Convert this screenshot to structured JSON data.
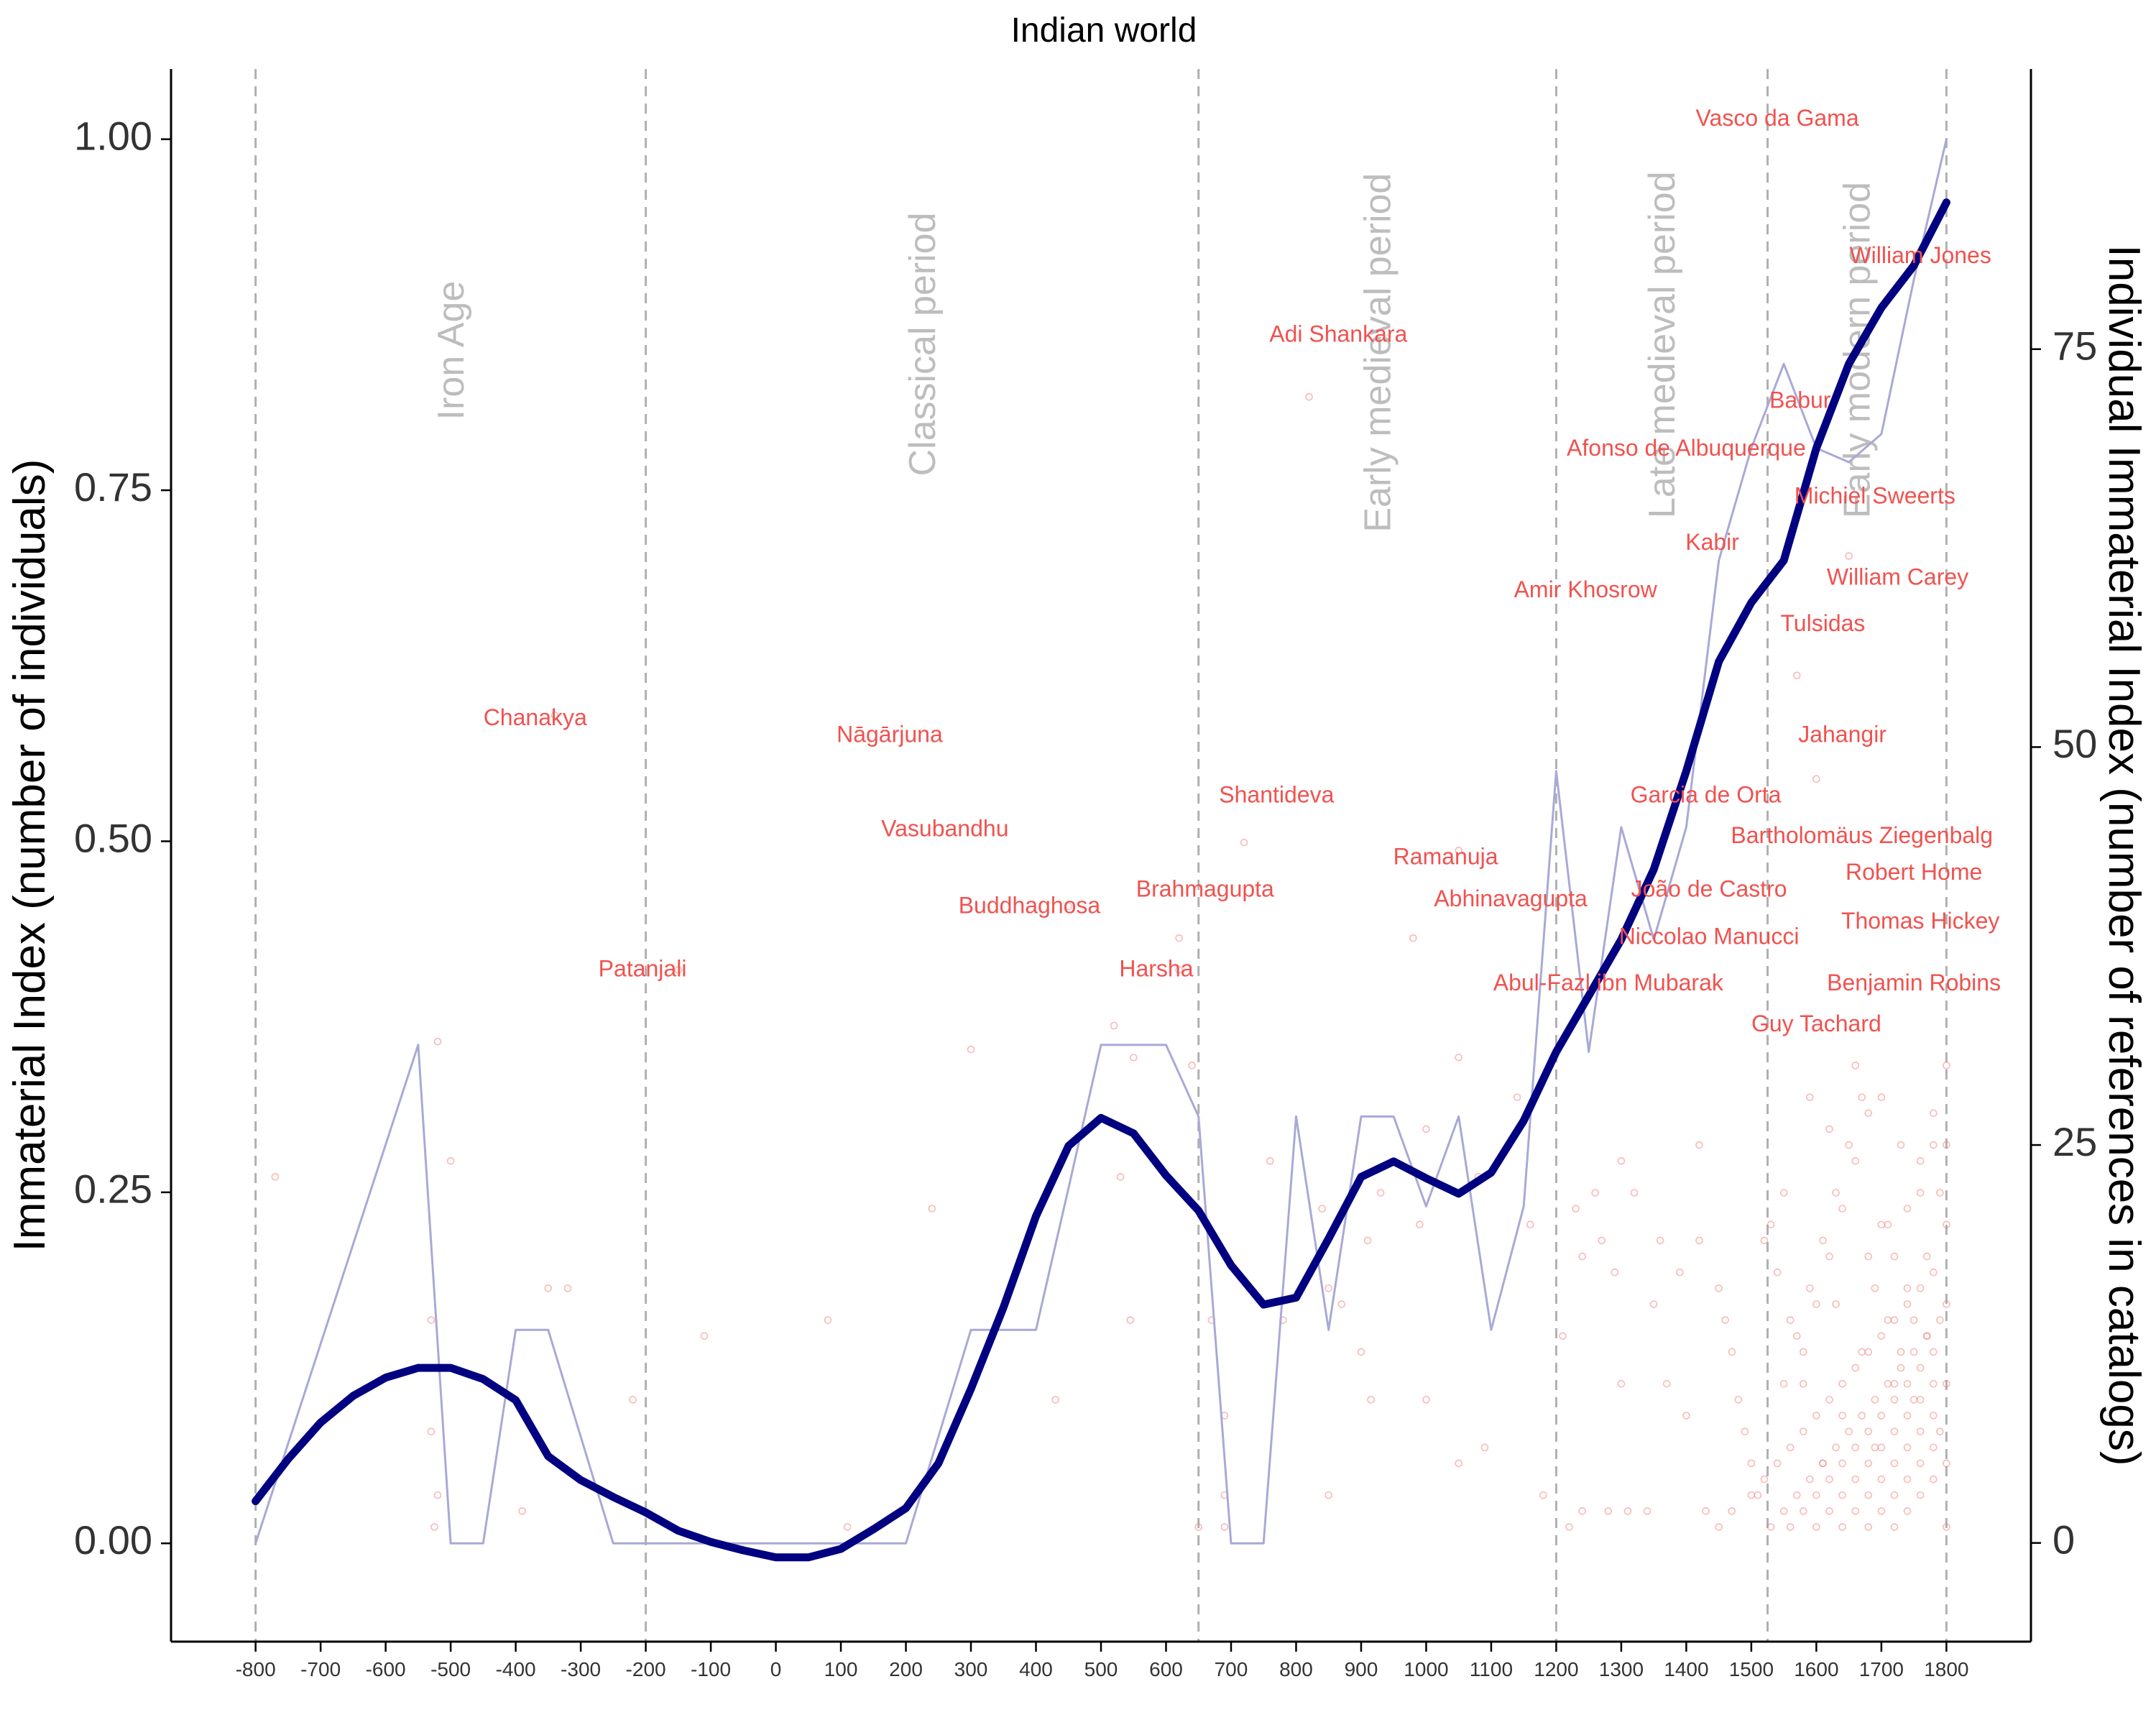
{
  "chart_data": {
    "type": "line",
    "title": "Indian world",
    "ylabel": "Immaterial Index (number of individuals)",
    "ylabel_right": "Individual Immaterial Index (number of references in catalogs)",
    "xlim": [
      -930,
      1930
    ],
    "ylim": [
      -0.07,
      1.05
    ],
    "ylim_right": [
      -6.2,
      92.6
    ],
    "grid": false,
    "x_ticks": [
      -800,
      -700,
      -600,
      -500,
      -400,
      -300,
      -200,
      -100,
      0,
      100,
      200,
      300,
      400,
      500,
      600,
      700,
      800,
      900,
      1000,
      1100,
      1200,
      1300,
      1400,
      1500,
      1600,
      1700,
      1800
    ],
    "y_ticks": [
      {
        "value": 0,
        "label": "0.00"
      },
      {
        "value": 0.25,
        "label": "0.25"
      },
      {
        "value": 0.5,
        "label": "0.50"
      },
      {
        "value": 0.75,
        "label": "0.75"
      },
      {
        "value": 1.0,
        "label": "1.00"
      }
    ],
    "y_ticks_right": [
      0,
      25,
      50,
      75
    ],
    "period_boundaries": [
      -800,
      -200,
      650,
      1200,
      1525,
      1800
    ],
    "periods": [
      {
        "label": "Iron Age",
        "x": -500,
        "y": 0.8
      },
      {
        "label": "Classical period",
        "x": 225,
        "y": 0.76
      },
      {
        "label": "Early medieval period",
        "x": 925,
        "y": 0.72
      },
      {
        "label": "Late medieval period",
        "x": 1362,
        "y": 0.73
      },
      {
        "label": "Early modern period",
        "x": 1662,
        "y": 0.73
      }
    ],
    "series": [
      {
        "color": "#a9a9d6",
        "x": [
          -800,
          -550,
          -500,
          -450,
          -400,
          -350,
          -250,
          -200,
          -100,
          0,
          100,
          200,
          250,
          300,
          350,
          400,
          450,
          500,
          550,
          600,
          650,
          700,
          750,
          800,
          850,
          900,
          950,
          1000,
          1050,
          1100,
          1150,
          1200,
          1250,
          1300,
          1350,
          1400,
          1450,
          1500,
          1550,
          1600,
          1650,
          1700,
          1750,
          1800
        ],
        "y": [
          0.0,
          0.355,
          0.0,
          0.0,
          0.152,
          0.152,
          0.0,
          0.0,
          0.0,
          0.0,
          0.0,
          0.0,
          0.076,
          0.152,
          0.152,
          0.152,
          0.253,
          0.355,
          0.355,
          0.355,
          0.304,
          0.0,
          0.0,
          0.304,
          0.152,
          0.304,
          0.304,
          0.24,
          0.304,
          0.152,
          0.24,
          0.55,
          0.35,
          0.51,
          0.43,
          0.51,
          0.7,
          0.78,
          0.84,
          0.78,
          0.77,
          0.79,
          0.9,
          1.0
        ]
      },
      {
        "color": "#000080",
        "x": [
          -800,
          -750,
          -700,
          -650,
          -600,
          -550,
          -500,
          -450,
          -400,
          -350,
          -300,
          -250,
          -200,
          -150,
          -100,
          -50,
          0,
          50,
          100,
          150,
          200,
          250,
          300,
          350,
          400,
          450,
          500,
          550,
          600,
          650,
          700,
          750,
          800,
          850,
          900,
          950,
          1000,
          1050,
          1100,
          1150,
          1200,
          1250,
          1300,
          1350,
          1400,
          1450,
          1500,
          1550,
          1600,
          1650,
          1700,
          1750,
          1800
        ],
        "y": [
          0.03,
          0.06,
          0.086,
          0.105,
          0.118,
          0.125,
          0.125,
          0.117,
          0.102,
          0.062,
          0.045,
          0.033,
          0.022,
          0.009,
          0.001,
          -0.005,
          -0.01,
          -0.01,
          -0.004,
          0.01,
          0.025,
          0.057,
          0.11,
          0.168,
          0.233,
          0.283,
          0.303,
          0.292,
          0.262,
          0.237,
          0.198,
          0.17,
          0.175,
          0.217,
          0.261,
          0.272,
          0.26,
          0.249,
          0.264,
          0.301,
          0.35,
          0.39,
          0.43,
          0.48,
          0.55,
          0.628,
          0.67,
          0.7,
          0.78,
          0.84,
          0.88,
          0.91,
          0.955
        ]
      }
    ],
    "annotations": [
      {
        "label": "Vasco da Gama",
        "x": 1540,
        "y": 1.014
      },
      {
        "label": "William Jones",
        "x": 1760,
        "y": 0.916
      },
      {
        "label": "Adi Shankara",
        "x": 865,
        "y": 0.86
      },
      {
        "label": "Babur",
        "x": 1575,
        "y": 0.813
      },
      {
        "label": "Afonso de Albuquerque",
        "x": 1400,
        "y": 0.779
      },
      {
        "label": "Michiel Sweerts",
        "x": 1690,
        "y": 0.745
      },
      {
        "label": "Kabir",
        "x": 1440,
        "y": 0.712
      },
      {
        "label": "William Carey",
        "x": 1725,
        "y": 0.687
      },
      {
        "label": "Amir Khosrow",
        "x": 1245,
        "y": 0.678
      },
      {
        "label": "Tulsidas",
        "x": 1610,
        "y": 0.654
      },
      {
        "label": "Chanakya",
        "x": -370,
        "y": 0.587
      },
      {
        "label": "Nāgārjuna",
        "x": 175,
        "y": 0.575
      },
      {
        "label": "Jahangir",
        "x": 1640,
        "y": 0.575
      },
      {
        "label": "Shantideva",
        "x": 770,
        "y": 0.532
      },
      {
        "label": "Garcia de Orta",
        "x": 1430,
        "y": 0.532
      },
      {
        "label": "Vasubandhu",
        "x": 260,
        "y": 0.508
      },
      {
        "label": "Bartholomäus Ziegenbalg",
        "x": 1670,
        "y": 0.503
      },
      {
        "label": "Ramanuja",
        "x": 1030,
        "y": 0.488
      },
      {
        "label": "Robert Home",
        "x": 1750,
        "y": 0.477
      },
      {
        "label": "Brahmagupta",
        "x": 660,
        "y": 0.465
      },
      {
        "label": "João de Castro",
        "x": 1435,
        "y": 0.465
      },
      {
        "label": "Buddhaghosa",
        "x": 390,
        "y": 0.453
      },
      {
        "label": "Abhinavagupta",
        "x": 1130,
        "y": 0.458
      },
      {
        "label": "Thomas Hickey",
        "x": 1760,
        "y": 0.442
      },
      {
        "label": "Niccolao Manucci",
        "x": 1435,
        "y": 0.431
      },
      {
        "label": "Patanjali",
        "x": -205,
        "y": 0.408
      },
      {
        "label": "Harsha",
        "x": 585,
        "y": 0.408
      },
      {
        "label": "Abul-Fazl ibn Mubarak",
        "x": 1280,
        "y": 0.398
      },
      {
        "label": "Benjamin Robins",
        "x": 1750,
        "y": 0.398
      },
      {
        "label": "Guy Tachard",
        "x": 1600,
        "y": 0.369
      }
    ],
    "points_right": [
      [
        -770,
        23
      ],
      [
        -520,
        31.5
      ],
      [
        -500,
        24
      ],
      [
        -530,
        14
      ],
      [
        -530,
        7
      ],
      [
        -520,
        3
      ],
      [
        -525,
        1
      ],
      [
        -350,
        16
      ],
      [
        -320,
        16
      ],
      [
        -340,
        52
      ],
      [
        -390,
        2
      ],
      [
        -150,
        36
      ],
      [
        -220,
        9
      ],
      [
        -110,
        13
      ],
      [
        80,
        14
      ],
      [
        110,
        1
      ],
      [
        240,
        21
      ],
      [
        300,
        31
      ],
      [
        430,
        9
      ],
      [
        450,
        40
      ],
      [
        520,
        32.5
      ],
      [
        530,
        23
      ],
      [
        545,
        14
      ],
      [
        550,
        30.5
      ],
      [
        620,
        38
      ],
      [
        620,
        36
      ],
      [
        640,
        30
      ],
      [
        650,
        1
      ],
      [
        670,
        14
      ],
      [
        690,
        3
      ],
      [
        690,
        1
      ],
      [
        690,
        8
      ],
      [
        720,
        44
      ],
      [
        760,
        24
      ],
      [
        780,
        14
      ],
      [
        820,
        72
      ],
      [
        840,
        21
      ],
      [
        850,
        16
      ],
      [
        850,
        3
      ],
      [
        870,
        15
      ],
      [
        900,
        12
      ],
      [
        910,
        19
      ],
      [
        915,
        9
      ],
      [
        930,
        22
      ],
      [
        980,
        38
      ],
      [
        990,
        20
      ],
      [
        1000,
        26
      ],
      [
        1000,
        9
      ],
      [
        1050,
        43.5
      ],
      [
        1050,
        30.5
      ],
      [
        1050,
        5
      ],
      [
        1080,
        23
      ],
      [
        1090,
        6
      ],
      [
        1140,
        28
      ],
      [
        1160,
        20
      ],
      [
        1180,
        3
      ],
      [
        1210,
        13
      ],
      [
        1220,
        1
      ],
      [
        1230,
        21
      ],
      [
        1240,
        2
      ],
      [
        1240,
        18
      ],
      [
        1260,
        22
      ],
      [
        1270,
        19
      ],
      [
        1280,
        2
      ],
      [
        1290,
        17
      ],
      [
        1300,
        24
      ],
      [
        1300,
        10
      ],
      [
        1310,
        2
      ],
      [
        1320,
        22
      ],
      [
        1340,
        2
      ],
      [
        1350,
        15
      ],
      [
        1360,
        19
      ],
      [
        1370,
        10
      ],
      [
        1390,
        17
      ],
      [
        1400,
        8
      ],
      [
        1420,
        19
      ],
      [
        1420,
        25
      ],
      [
        1430,
        2
      ],
      [
        1450,
        16
      ],
      [
        1460,
        14
      ],
      [
        1470,
        12
      ],
      [
        1480,
        9
      ],
      [
        1490,
        7
      ],
      [
        1500,
        5
      ],
      [
        1510,
        3
      ],
      [
        1520,
        19
      ],
      [
        1530,
        20
      ],
      [
        1540,
        17
      ],
      [
        1550,
        22
      ],
      [
        1560,
        14
      ],
      [
        1570,
        54.5
      ],
      [
        1580,
        10
      ],
      [
        1590,
        28
      ],
      [
        1600,
        48
      ],
      [
        1610,
        5
      ],
      [
        1620,
        26
      ],
      [
        1630,
        15
      ],
      [
        1640,
        8
      ],
      [
        1650,
        62
      ],
      [
        1660,
        30
      ],
      [
        1670,
        12
      ],
      [
        1680,
        18
      ],
      [
        1690,
        6
      ],
      [
        1700,
        28
      ],
      [
        1710,
        20
      ],
      [
        1720,
        10
      ],
      [
        1730,
        25
      ],
      [
        1740,
        16
      ],
      [
        1750,
        9
      ],
      [
        1760,
        22
      ],
      [
        1770,
        13
      ],
      [
        1780,
        25
      ],
      [
        1790,
        7
      ],
      [
        1800,
        25
      ],
      [
        1800,
        30
      ],
      [
        1800,
        20
      ],
      [
        1800,
        15
      ],
      [
        1800,
        10
      ],
      [
        1800,
        5
      ],
      [
        1800,
        1
      ],
      [
        1450,
        1
      ],
      [
        1470,
        2
      ],
      [
        1500,
        3
      ],
      [
        1520,
        4
      ],
      [
        1540,
        5
      ],
      [
        1560,
        6
      ],
      [
        1580,
        7
      ],
      [
        1600,
        8
      ],
      [
        1620,
        9
      ],
      [
        1640,
        10
      ],
      [
        1660,
        11
      ],
      [
        1680,
        12
      ],
      [
        1700,
        13
      ],
      [
        1720,
        14
      ],
      [
        1740,
        15
      ],
      [
        1760,
        16
      ],
      [
        1780,
        17
      ],
      [
        1530,
        1
      ],
      [
        1550,
        2
      ],
      [
        1570,
        3
      ],
      [
        1590,
        4
      ],
      [
        1610,
        5
      ],
      [
        1630,
        6
      ],
      [
        1650,
        7
      ],
      [
        1670,
        8
      ],
      [
        1690,
        9
      ],
      [
        1710,
        10
      ],
      [
        1730,
        11
      ],
      [
        1750,
        12
      ],
      [
        1770,
        13
      ],
      [
        1790,
        14
      ],
      [
        1560,
        1
      ],
      [
        1580,
        2
      ],
      [
        1600,
        3
      ],
      [
        1620,
        4
      ],
      [
        1640,
        5
      ],
      [
        1660,
        6
      ],
      [
        1680,
        7
      ],
      [
        1700,
        8
      ],
      [
        1720,
        9
      ],
      [
        1740,
        10
      ],
      [
        1760,
        11
      ],
      [
        1780,
        12
      ],
      [
        1600,
        1
      ],
      [
        1620,
        2
      ],
      [
        1640,
        3
      ],
      [
        1660,
        4
      ],
      [
        1680,
        5
      ],
      [
        1700,
        6
      ],
      [
        1720,
        7
      ],
      [
        1740,
        8
      ],
      [
        1760,
        9
      ],
      [
        1780,
        10
      ],
      [
        1640,
        1
      ],
      [
        1660,
        2
      ],
      [
        1680,
        3
      ],
      [
        1700,
        4
      ],
      [
        1720,
        5
      ],
      [
        1740,
        6
      ],
      [
        1760,
        7
      ],
      [
        1780,
        8
      ],
      [
        1680,
        1
      ],
      [
        1700,
        2
      ],
      [
        1720,
        3
      ],
      [
        1740,
        4
      ],
      [
        1760,
        5
      ],
      [
        1780,
        6
      ],
      [
        1720,
        1
      ],
      [
        1740,
        2
      ],
      [
        1760,
        3
      ],
      [
        1780,
        4
      ],
      [
        1580,
        12
      ],
      [
        1600,
        15
      ],
      [
        1620,
        18
      ],
      [
        1640,
        21
      ],
      [
        1660,
        24
      ],
      [
        1680,
        27
      ],
      [
        1700,
        20
      ],
      [
        1720,
        18
      ],
      [
        1740,
        21
      ],
      [
        1760,
        24
      ],
      [
        1780,
        27
      ],
      [
        1550,
        10
      ],
      [
        1570,
        13
      ],
      [
        1590,
        16
      ],
      [
        1610,
        19
      ],
      [
        1630,
        22
      ],
      [
        1650,
        25
      ],
      [
        1670,
        28
      ],
      [
        1690,
        16
      ],
      [
        1710,
        14
      ],
      [
        1730,
        12
      ],
      [
        1750,
        14
      ],
      [
        1770,
        18
      ],
      [
        1790,
        22
      ]
    ]
  }
}
